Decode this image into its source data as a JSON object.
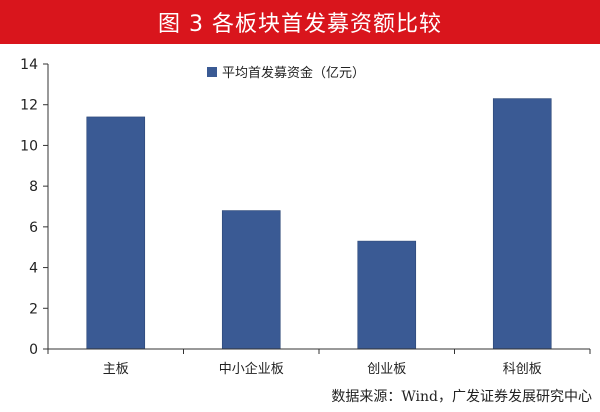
{
  "header": {
    "title": "图 3   各板块首发募资额比较"
  },
  "footer": {
    "source": "数据来源：Wind，广发证券发展研究中心"
  },
  "colors": {
    "title_bg": "#d9151c",
    "bar": "#3a5a94",
    "axis": "#333333"
  },
  "chart_data": {
    "type": "bar",
    "title": "",
    "xlabel": "",
    "ylabel": "",
    "categories": [
      "主板",
      "中小企业板",
      "创业板",
      "科创板"
    ],
    "series": [
      {
        "name": "平均首发募资金（亿元）",
        "values": [
          11.4,
          6.8,
          5.3,
          12.3
        ]
      }
    ],
    "ylim": [
      0,
      14
    ],
    "yticks": [
      0,
      2,
      4,
      6,
      8,
      10,
      12,
      14
    ],
    "grid": false,
    "legend_position": "top-center"
  }
}
